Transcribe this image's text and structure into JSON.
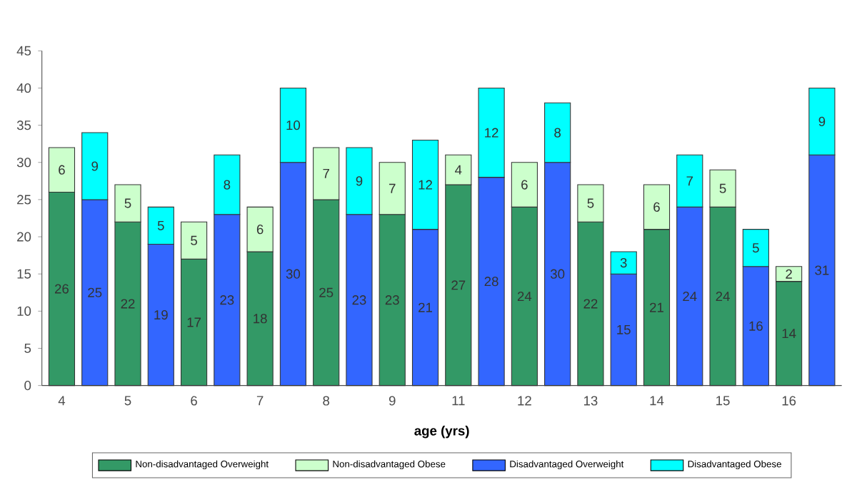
{
  "chart_data": {
    "type": "bar",
    "stacked": true,
    "xlabel": "age (yrs)",
    "categories": [
      "4",
      null,
      "5",
      null,
      "6",
      null,
      "7",
      null,
      "8",
      null,
      "9",
      null,
      "11",
      null,
      "12",
      null,
      "13",
      null,
      "14",
      null,
      "15",
      null,
      "16",
      null
    ],
    "series": [
      {
        "name": "Non-disadvantaged Overweight",
        "color": "#339966",
        "values": [
          26,
          null,
          22,
          null,
          17,
          null,
          18,
          null,
          25,
          null,
          23,
          null,
          27,
          null,
          24,
          null,
          22,
          null,
          21,
          null,
          24,
          null,
          14,
          null
        ]
      },
      {
        "name": "Non-disadvantaged Obese",
        "color": "#ccffcc",
        "values": [
          6,
          null,
          5,
          null,
          5,
          null,
          6,
          null,
          7,
          null,
          7,
          null,
          4,
          null,
          6,
          null,
          5,
          null,
          6,
          null,
          5,
          null,
          2,
          null
        ]
      },
      {
        "name": "Disadvantaged Overweight",
        "color": "#3366ff",
        "values": [
          null,
          25,
          null,
          19,
          null,
          23,
          null,
          30,
          null,
          23,
          null,
          21,
          null,
          28,
          null,
          30,
          null,
          15,
          null,
          24,
          null,
          16,
          null,
          31
        ]
      },
      {
        "name": "Disadvantaged Obese",
        "color": "#00ffff",
        "values": [
          null,
          9,
          null,
          5,
          null,
          8,
          null,
          10,
          null,
          9,
          null,
          12,
          null,
          12,
          null,
          8,
          null,
          3,
          null,
          7,
          null,
          5,
          null,
          9
        ]
      }
    ],
    "ylim": [
      0,
      45
    ],
    "yticks": [
      0,
      5,
      10,
      15,
      20,
      25,
      30,
      35,
      40,
      45
    ],
    "data_labels": true,
    "legend": "bottom",
    "grid": false
  }
}
